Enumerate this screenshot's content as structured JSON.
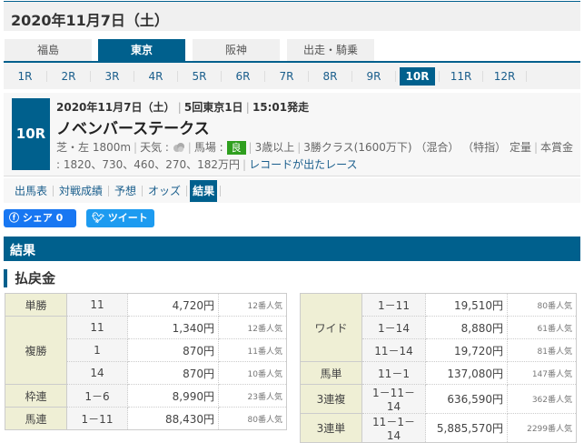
{
  "header": {
    "date": "2020年11月7日（土）"
  },
  "venues": [
    {
      "label": "福島",
      "active": false
    },
    {
      "label": "東京",
      "active": true
    },
    {
      "label": "阪神",
      "active": false
    },
    {
      "label": "出走・騎乗",
      "active": false
    }
  ],
  "races": [
    "1R",
    "2R",
    "3R",
    "4R",
    "5R",
    "6R",
    "7R",
    "8R",
    "9R",
    "10R",
    "11R",
    "12R"
  ],
  "active_race": "10R",
  "race": {
    "number": "10R",
    "date": "2020年11月7日（土）",
    "kai": "5回東京1日",
    "start": "15:01発走",
    "name": "ノベンバーステークス",
    "course": "芝・左 1800m",
    "weather_label": "天気 :",
    "weather_icon": "cloudy-icon",
    "baba_label": "馬場 :",
    "baba": "良",
    "age": "3歳以上",
    "class": "3勝クラス(1600万下) （混合） （特指） 定量",
    "prize": "本賞金 : 1820、730、460、270、182万円",
    "record_link": "レコードが出たレース"
  },
  "subnav": [
    {
      "label": "出馬表",
      "active": false
    },
    {
      "label": "対戦成績",
      "active": false
    },
    {
      "label": "予想",
      "active": false
    },
    {
      "label": "オッズ",
      "active": false
    },
    {
      "label": "結果",
      "active": true
    }
  ],
  "share": {
    "facebook": "シェア 0",
    "twitter": "ツイート"
  },
  "section_title": "結果",
  "payout_title": "払戻金",
  "colors": {
    "accent": "#00608d",
    "baba": "#2f9f1f",
    "label_bg": "#efefd5"
  },
  "payouts_left": [
    {
      "type": "単勝",
      "rows": [
        {
          "num": "11",
          "amount": "4,720円",
          "pop": "12番人気"
        }
      ]
    },
    {
      "type": "複勝",
      "rows": [
        {
          "num": "11",
          "amount": "1,340円",
          "pop": "12番人気"
        },
        {
          "num": "1",
          "amount": "870円",
          "pop": "11番人気"
        },
        {
          "num": "14",
          "amount": "870円",
          "pop": "10番人気"
        }
      ]
    },
    {
      "type": "枠連",
      "rows": [
        {
          "num": "1－6",
          "amount": "8,990円",
          "pop": "23番人気"
        }
      ]
    },
    {
      "type": "馬連",
      "rows": [
        {
          "num": "1－11",
          "amount": "88,430円",
          "pop": "80番人気"
        }
      ]
    }
  ],
  "payouts_right": [
    {
      "type": "ワイド",
      "rows": [
        {
          "num": "1－11",
          "amount": "19,510円",
          "pop": "80番人気"
        },
        {
          "num": "1－14",
          "amount": "8,880円",
          "pop": "61番人気"
        },
        {
          "num": "11－14",
          "amount": "19,720円",
          "pop": "81番人気"
        }
      ]
    },
    {
      "type": "馬単",
      "rows": [
        {
          "num": "11－1",
          "amount": "137,080円",
          "pop": "147番人気"
        }
      ]
    },
    {
      "type": "3連複",
      "rows": [
        {
          "num": "1－11－14",
          "amount": "636,590円",
          "pop": "362番人気"
        }
      ]
    },
    {
      "type": "3連単",
      "rows": [
        {
          "num": "11－1－14",
          "amount": "5,885,570円",
          "pop": "2299番人気"
        }
      ]
    }
  ]
}
